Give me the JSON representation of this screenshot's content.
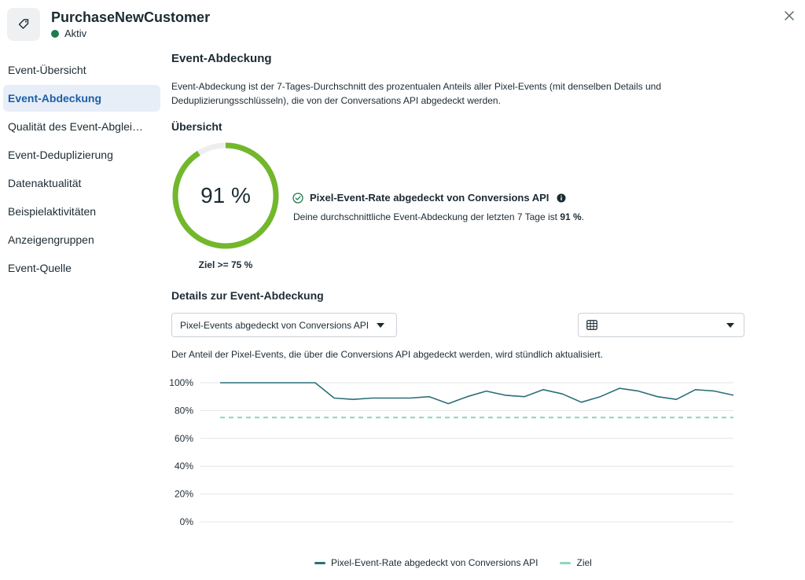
{
  "header": {
    "title": "PurchaseNewCustomer",
    "status_label": "Aktiv",
    "status_color": "#1f7a4d",
    "icon": "tag-icon",
    "close_icon": "close-icon"
  },
  "sidebar": {
    "items": [
      {
        "label": "Event-Übersicht",
        "active": false
      },
      {
        "label": "Event-Abdeckung",
        "active": true
      },
      {
        "label": "Qualität des Event-Abglei…",
        "active": false
      },
      {
        "label": "Event-Deduplizierung",
        "active": false
      },
      {
        "label": "Datenaktualität",
        "active": false
      },
      {
        "label": "Beispielaktivitäten",
        "active": false
      },
      {
        "label": "Anzeigengruppen",
        "active": false
      },
      {
        "label": "Event-Quelle",
        "active": false
      }
    ]
  },
  "main": {
    "heading": "Event-Abdeckung",
    "description": "Event-Abdeckung ist der 7-Tages-Durchschnitt des prozentualen Anteils aller Pixel-Events (mit denselben Details und Deduplizierungsschlüsseln), die von der Conversations API abgedeckt werden.",
    "overview": {
      "heading": "Übersicht",
      "ring_value_label": "91 %",
      "ring_value": 91,
      "ring_color": "#73b72c",
      "ring_track_color": "#eceeef",
      "goal_label": "Ziel >= 75 %",
      "rate_title": "Pixel-Event-Rate abgedeckt von Conversions API",
      "rate_desc_prefix": "Deine durchschnittliche Event-Abdeckung der letzten 7 Tage ist ",
      "rate_desc_value": "91 %",
      "rate_desc_suffix": "."
    },
    "details": {
      "heading": "Details zur Event-Abdeckung",
      "metric_select": "Pixel-Events abgedeckt von Conversions API",
      "view_select_icon": "table-icon",
      "hint": "Der Anteil der Pixel-Events, die über die Conversions API abgedeckt werden, wird stündlich aktualisiert."
    }
  },
  "chart_data": {
    "type": "line",
    "ylim": [
      0,
      100
    ],
    "y_ticks": [
      "0%",
      "20%",
      "40%",
      "60%",
      "80%",
      "100%"
    ],
    "grid": true,
    "legend_position": "bottom",
    "series": [
      {
        "name": "Pixel-Event-Rate abgedeckt von Conversions API",
        "color": "#2b6f78",
        "values": [
          100,
          100,
          100,
          100,
          100,
          100,
          89,
          88,
          89,
          89,
          89,
          90,
          85,
          90,
          94,
          91,
          90,
          95,
          92,
          86,
          90,
          96,
          94,
          90,
          88,
          95,
          94,
          91
        ]
      },
      {
        "name": "Ziel",
        "color": "#8fd3c0",
        "dashed": true,
        "values": [
          75,
          75
        ]
      }
    ]
  }
}
